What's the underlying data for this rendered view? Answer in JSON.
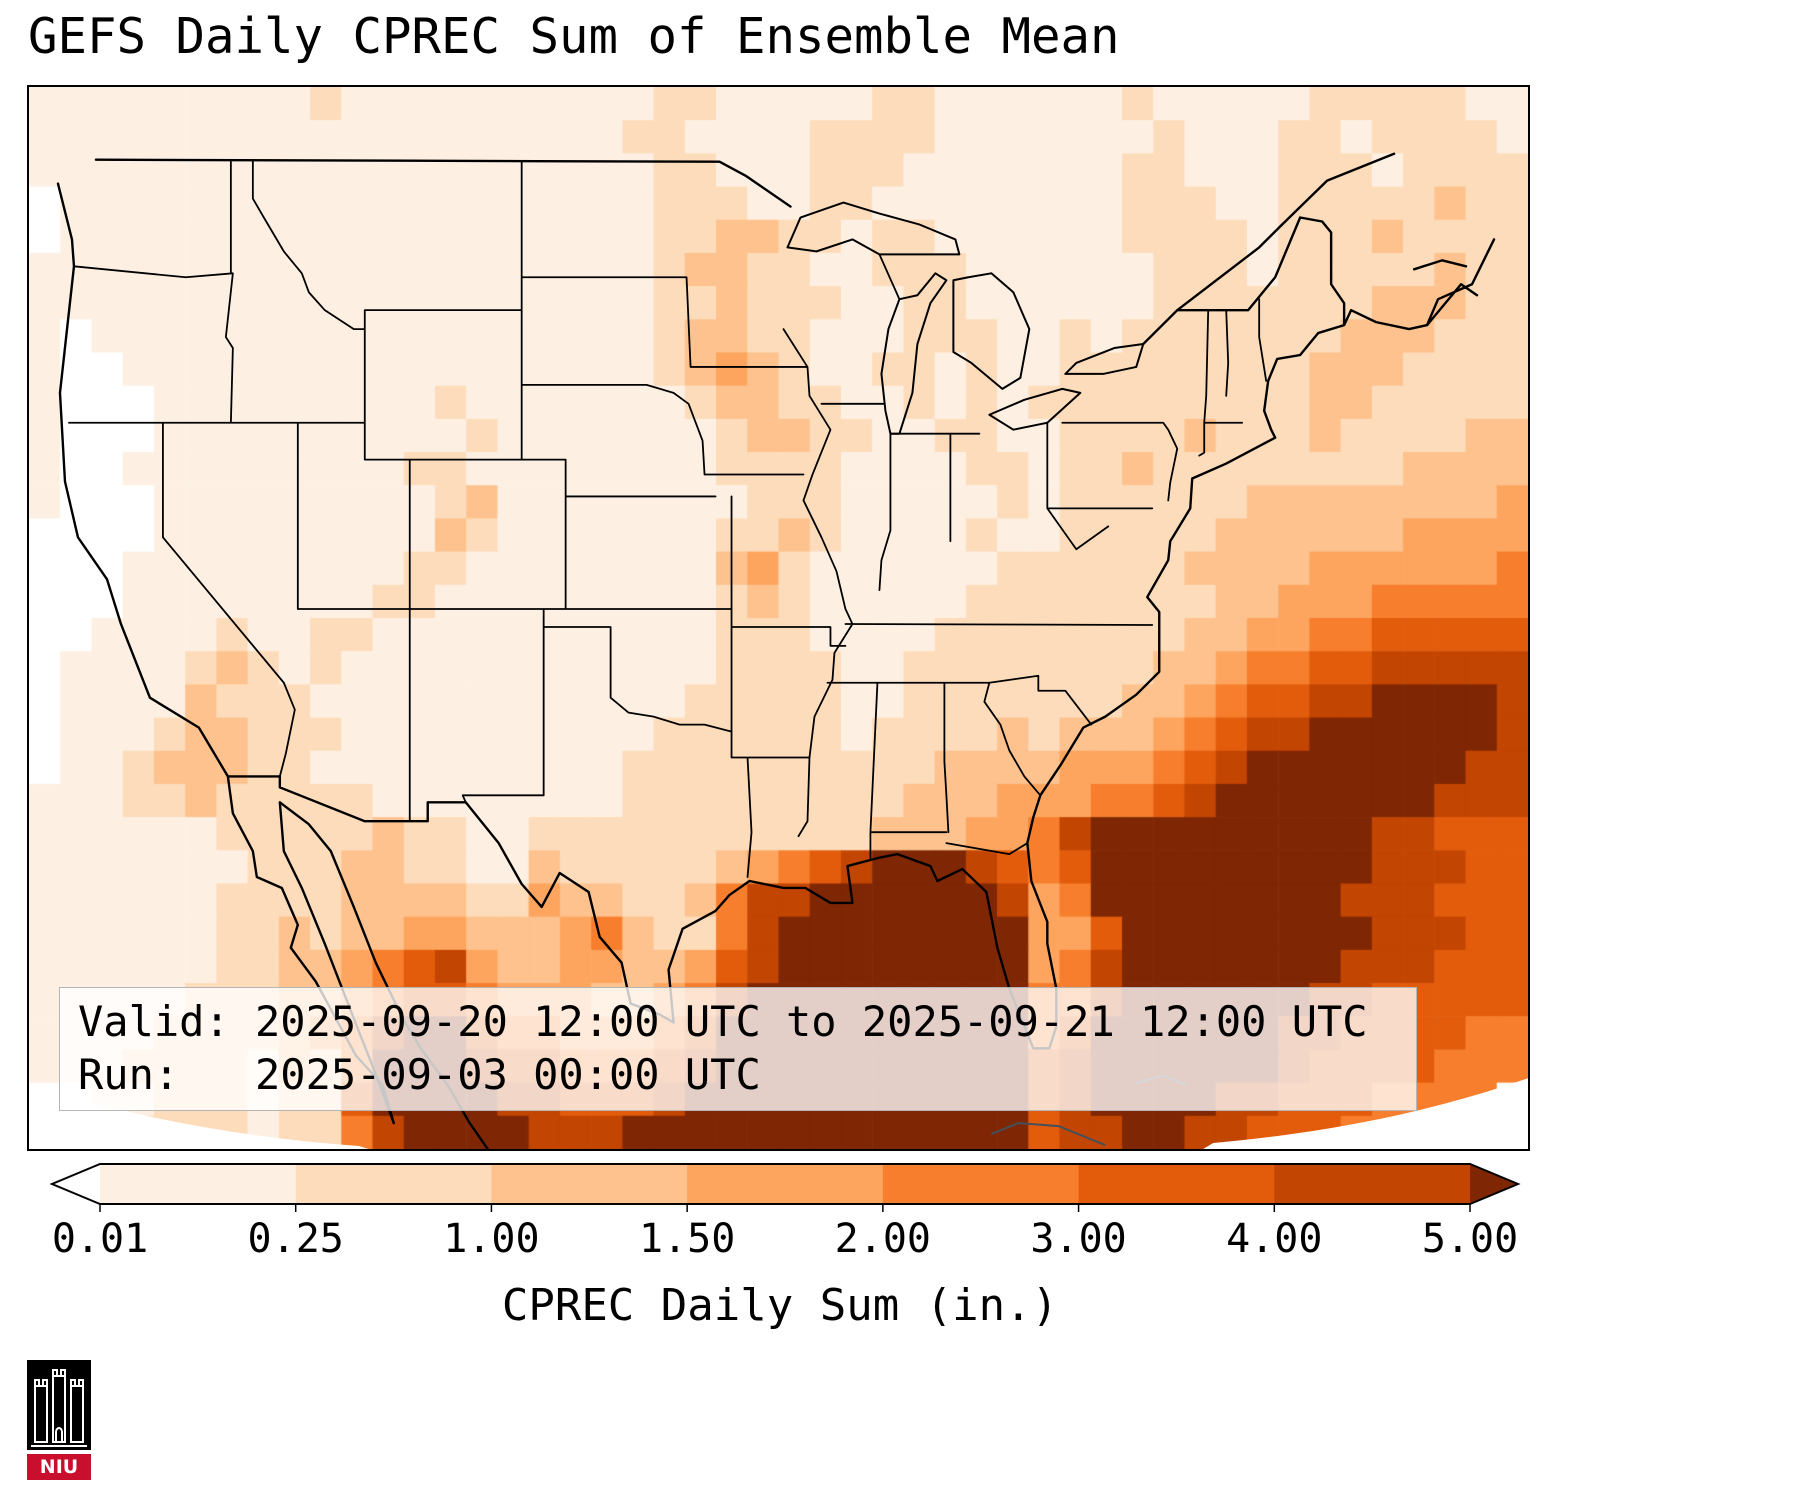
{
  "title": "GEFS Daily CPREC Sum of Ensemble Mean",
  "info_box": {
    "valid_line": "Valid: 2025-09-20 12:00 UTC to 2025-09-21 12:00 UTC",
    "run_line": "Run:   2025-09-03 00:00 UTC"
  },
  "colorbar": {
    "label": "CPREC Daily Sum (in.)",
    "ticks": [
      "0.01",
      "0.25",
      "1.00",
      "1.50",
      "2.00",
      "3.00",
      "4.00",
      "5.00"
    ]
  },
  "logo": {
    "text": "NIU",
    "banner_color": "#c8102e"
  },
  "chart_data": {
    "type": "heatmap",
    "title": "GEFS Daily CPREC Sum of Ensemble Mean",
    "variable": "CPREC Daily Sum",
    "units": "in.",
    "valid_period": "2025-09-20 12:00 UTC to 2025-09-21 12:00 UTC",
    "model_run": "2025-09-03 00:00 UTC",
    "levels": [
      0.01,
      0.25,
      1.0,
      1.5,
      2.0,
      3.0,
      4.0,
      5.0
    ],
    "colormap": "Oranges",
    "level_colors": [
      "#ffffff",
      "#fdf0e3",
      "#fddcbb",
      "#fdc28e",
      "#fda55e",
      "#f67e2c",
      "#e25c0c",
      "#c34502",
      "#7f2704"
    ],
    "extent": {
      "lon": [
        -126,
        -59
      ],
      "lat": [
        22.5,
        51
      ]
    },
    "grid_legend": "Each digit is a precipitation color level index: 0 = <0.01 in (white), 1 = 0.01-0.25, 2 = 0.25-1.00, 3 = 1.00-1.50, 4 = 1.50-2.00, 5 = 2.00-3.00, 6 = 3.00-4.00, 7 = 4.00-5.00, 8 = >5.00 in. Rows run north to south (lat 51 to 22.5), columns west to east (lon -126 to -59).",
    "grid_rows": [
      "111111111211111111112211111221111112111112222211",
      "111111111111111111122111122221111111211122122221",
      "111111111111111111112211122211111112211122212222",
      "011111111111111111112221122111111112221122222322",
      "011111111111111111112233221221111112222122232222",
      "111111111111111111112332211222111111222122222322",
      "111111111111111111112232221122111111222222233322",
      "101111111111111111112332211122211212222222333222",
      "100111111111111111112343211221211222222223332222",
      "100011111111121111111233221121212222222223322222",
      "100011111111112111111123322112211222232223222233",
      "100111111111221111111122221111221223222222223333",
      "100011111111123111111112221111121222222333333334",
      "000011111111132111111122321111211222223333334444",
      "000111111111221111111134211111122222233334444445",
      "000111111112211111111123211111222222223344455555",
      "001111211221111111111122211112222222233445566666",
      "011112321211111111111122221122222222334556677777",
      "011113222111111111111222221122222223345667788887",
      "011123322211111111112222221222232333456778888887",
      "011233322111111111122222222223333444567888888877",
      "111223222221111111122222222233344455678888888777",
      "111111222223221122222222222333445788888888877666",
      "111111122233221132222234567888765688888888877766",
      "111111222233332243322357788888874588888888777666",
      "111111223233443334532257888888884468888888877766",
      "111111223345674334433467888888884578888888777666",
      "111112223345665444334578888888885578888887766666",
      "111122223457886554445688888888885688888877666655",
      "111222213258887665556788888888886788888876666555",
      "001122212268888776667888888888886788887766655550",
      "000222212257888877788888888888886778877666555000"
    ]
  }
}
